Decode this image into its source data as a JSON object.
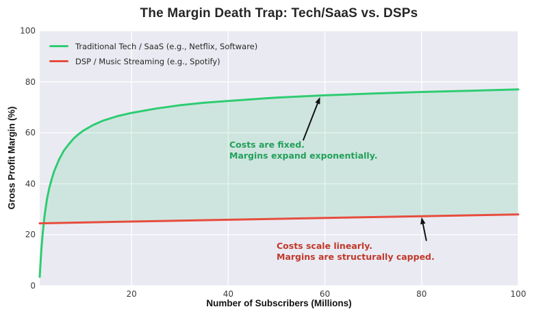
{
  "chart_data": {
    "type": "line",
    "title": "The Margin Death Trap: Tech/SaaS vs. DSPs",
    "xlabel": "Number of Subscribers (Millions)",
    "ylabel": "Gross Profit Margin (%)",
    "xlim": [
      1,
      100
    ],
    "ylim": [
      0,
      100
    ],
    "xticks": [
      20,
      40,
      60,
      80,
      100
    ],
    "yticks": [
      0,
      20,
      40,
      60,
      80,
      100
    ],
    "grid": true,
    "plot_bg_color": "#eaeaf2",
    "grid_color": "#ffffff",
    "legend_position": "upper-left",
    "series": [
      {
        "name": "Traditional Tech / SaaS (e.g., Netflix, Software)",
        "color": "#2ecc71",
        "x": [
          1,
          1.3,
          1.6,
          2,
          2.5,
          3,
          3.5,
          4,
          5,
          6,
          7,
          8,
          9,
          10,
          12,
          14,
          17,
          20,
          25,
          30,
          35,
          40,
          50,
          60,
          70,
          80,
          90,
          100
        ],
        "y": [
          3.5,
          13,
          20,
          27.5,
          34,
          38.5,
          42,
          45,
          49.5,
          53,
          55.5,
          57.7,
          59.4,
          60.8,
          63,
          64.7,
          66.5,
          67.8,
          69.5,
          70.8,
          71.8,
          72.5,
          73.8,
          74.7,
          75.4,
          76,
          76.5,
          77
        ]
      },
      {
        "name": "DSP / Music Streaming (e.g., Spotify)",
        "color": "#e74c3c",
        "x": [
          1,
          20,
          40,
          60,
          80,
          100
        ],
        "y": [
          24.5,
          25.2,
          25.9,
          26.6,
          27.3,
          28
        ]
      }
    ],
    "fill_between": {
      "upper_series": 0,
      "lower_series": 1,
      "color": "rgba(46, 204, 113, 0.15)"
    },
    "annotations": [
      {
        "lines": [
          "Costs are fixed.",
          "Margins expand exponentially."
        ],
        "color": "#23a05a",
        "arrow_color": "#111111",
        "arrow_from": [
          55.5,
          57.0
        ],
        "arrow_to": [
          59.0,
          74.0
        ]
      },
      {
        "lines": [
          "Costs scale linearly.",
          "Margins are structurally capped."
        ],
        "color": "#c0392b",
        "arrow_color": "#111111",
        "arrow_from": [
          81.0,
          17.6
        ],
        "arrow_to": [
          80.0,
          26.9
        ]
      }
    ]
  }
}
